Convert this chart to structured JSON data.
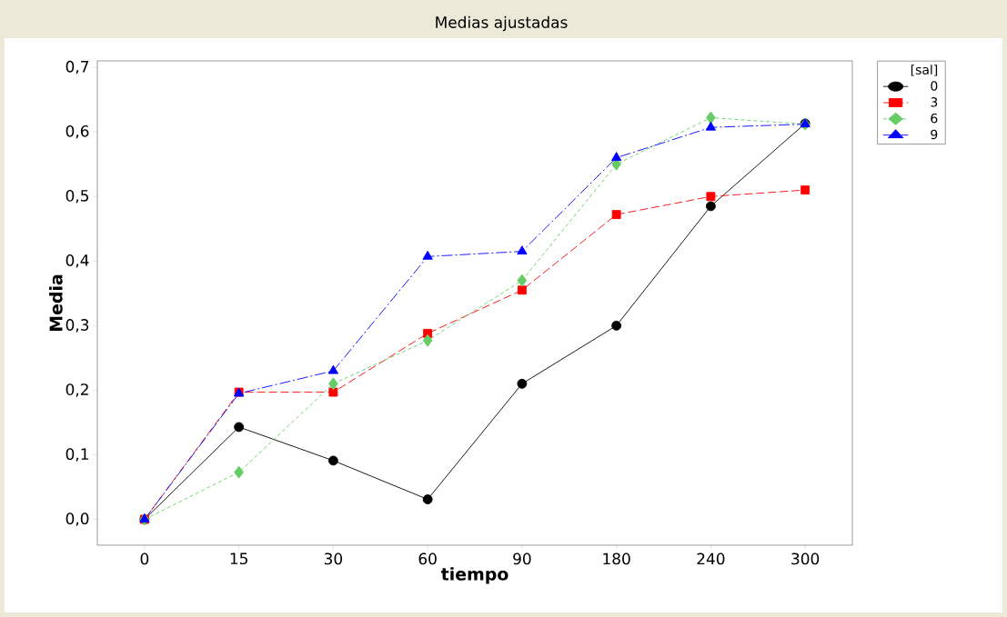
{
  "chart_data": {
    "type": "line",
    "title": "Medias ajustadas",
    "xlabel": "tiempo",
    "ylabel": "Media",
    "legend_title": "[sal]",
    "categories": [
      "0",
      "15",
      "30",
      "60",
      "90",
      "180",
      "240",
      "300"
    ],
    "ylim": [
      -0.04,
      0.71
    ],
    "yticks": [
      {
        "value": 0,
        "label": "0,0"
      },
      {
        "value": 0.1,
        "label": "0,1"
      },
      {
        "value": 0.2,
        "label": "0,2"
      },
      {
        "value": 0.3,
        "label": "0,3"
      },
      {
        "value": 0.4,
        "label": "0,4"
      },
      {
        "value": 0.5,
        "label": "0,5"
      },
      {
        "value": 0.6,
        "label": "0,6"
      },
      {
        "value": 0.7,
        "label": "0,7"
      }
    ],
    "grid": false,
    "legend": "right",
    "series": [
      {
        "name": "0",
        "color": "#000000",
        "marker": "circle",
        "line_style": "solid",
        "values": [
          0,
          0.143,
          0.091,
          0.031,
          0.21,
          0.3,
          0.485,
          0.613
        ]
      },
      {
        "name": "3",
        "color": "#ff0000",
        "marker": "square",
        "line_style": "dashed",
        "values": [
          0,
          0.197,
          0.197,
          0.288,
          0.355,
          0.472,
          0.5,
          0.51
        ]
      },
      {
        "name": "6",
        "color": "#66cc66",
        "marker": "diamond",
        "line_style": "dotted",
        "values": [
          0,
          0.073,
          0.21,
          0.277,
          0.37,
          0.55,
          0.622,
          0.612
        ]
      },
      {
        "name": "9",
        "color": "#0000ff",
        "marker": "triangle",
        "line_style": "dashdot",
        "values": [
          0,
          0.195,
          0.23,
          0.407,
          0.415,
          0.56,
          0.607,
          0.612
        ]
      }
    ]
  }
}
